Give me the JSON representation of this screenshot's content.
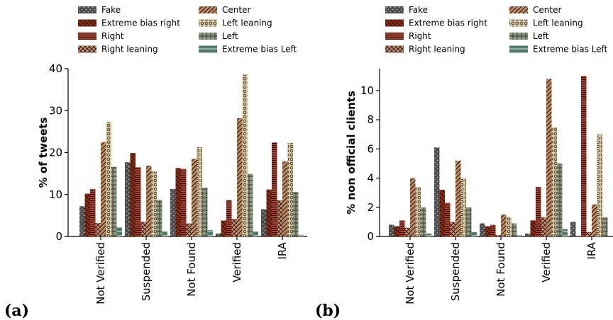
{
  "panel_labels": [
    "(a)",
    "(b)"
  ],
  "series_styles": [
    {
      "name": "Fake",
      "color": "#4a4a4a",
      "pattern": "dots"
    },
    {
      "name": "Extreme bias right",
      "color": "#8b2a12",
      "pattern": "backslash"
    },
    {
      "name": "Right",
      "color": "#b53c1e",
      "pattern": "hlines"
    },
    {
      "name": "Right leaning",
      "color": "#cf8a6a",
      "pattern": "cross"
    },
    {
      "name": "Center",
      "color": "#c08a5f",
      "pattern": "slash"
    },
    {
      "name": "Left leaning",
      "color": "#dcc9a0",
      "pattern": "circles"
    },
    {
      "name": "Left",
      "color": "#8a9a80",
      "pattern": "plus"
    },
    {
      "name": "Extreme bias Left",
      "color": "#4f7a68",
      "pattern": "hbars"
    }
  ],
  "chart_data": [
    {
      "type": "bar",
      "panel": "(a)",
      "ylabel": "% of tweets",
      "ylim": [
        0,
        40
      ],
      "yticks": [
        0,
        10,
        20,
        30,
        40
      ],
      "categories": [
        "Not Verified",
        "Suspended",
        "Not Found",
        "Verified",
        "IRA"
      ],
      "legend": [
        "Fake",
        "Extreme bias right",
        "Right",
        "Right leaning",
        "Center",
        "Left leaning",
        "Left",
        "Extreme bias Left"
      ],
      "series": [
        {
          "name": "Fake",
          "values": [
            7.2,
            17.7,
            11.3,
            0.7,
            6.5
          ]
        },
        {
          "name": "Extreme bias right",
          "values": [
            10.2,
            19.9,
            16.3,
            3.8,
            11.2
          ]
        },
        {
          "name": "Right",
          "values": [
            11.3,
            16.5,
            16.1,
            8.6,
            22.4
          ]
        },
        {
          "name": "Right leaning",
          "values": [
            3.2,
            3.5,
            3.1,
            4.2,
            8.6
          ]
        },
        {
          "name": "Center",
          "values": [
            22.5,
            16.9,
            18.5,
            28.2,
            17.9
          ]
        },
        {
          "name": "Left leaning",
          "values": [
            27.3,
            15.5,
            21.3,
            38.6,
            22.3
          ]
        },
        {
          "name": "Left",
          "values": [
            16.6,
            8.7,
            11.6,
            14.9,
            10.6
          ]
        },
        {
          "name": "Extreme bias Left",
          "values": [
            2.3,
            1.3,
            1.5,
            1.3,
            0.4
          ]
        }
      ]
    },
    {
      "type": "bar",
      "panel": "(b)",
      "ylabel": "% non official clients",
      "ylim": [
        0,
        11.5
      ],
      "yticks": [
        0,
        2,
        4,
        6,
        8,
        10
      ],
      "categories": [
        "Not Verified",
        "Suspended",
        "Not Found",
        "Verified",
        "IRA"
      ],
      "legend": [
        "Fake",
        "Extreme bias right",
        "Right",
        "Right leaning",
        "Center",
        "Left leaning",
        "Left",
        "Extreme bias Left"
      ],
      "series": [
        {
          "name": "Fake",
          "values": [
            0.8,
            6.1,
            0.9,
            0.2,
            1.0
          ]
        },
        {
          "name": "Extreme bias right",
          "values": [
            0.7,
            3.2,
            0.7,
            1.1,
            0.0
          ]
        },
        {
          "name": "Right",
          "values": [
            1.1,
            2.3,
            0.8,
            3.4,
            11.0
          ]
        },
        {
          "name": "Right leaning",
          "values": [
            0.6,
            1.0,
            0.1,
            1.3,
            0.3
          ]
        },
        {
          "name": "Center",
          "values": [
            4.0,
            5.2,
            1.5,
            10.8,
            2.2
          ]
        },
        {
          "name": "Left leaning",
          "values": [
            3.4,
            4.0,
            1.3,
            7.5,
            7.0
          ]
        },
        {
          "name": "Left",
          "values": [
            2.0,
            2.0,
            0.9,
            5.0,
            1.3
          ]
        },
        {
          "name": "Extreme bias Left",
          "values": [
            0.2,
            0.3,
            0.1,
            0.5,
            0.0
          ]
        }
      ]
    }
  ]
}
